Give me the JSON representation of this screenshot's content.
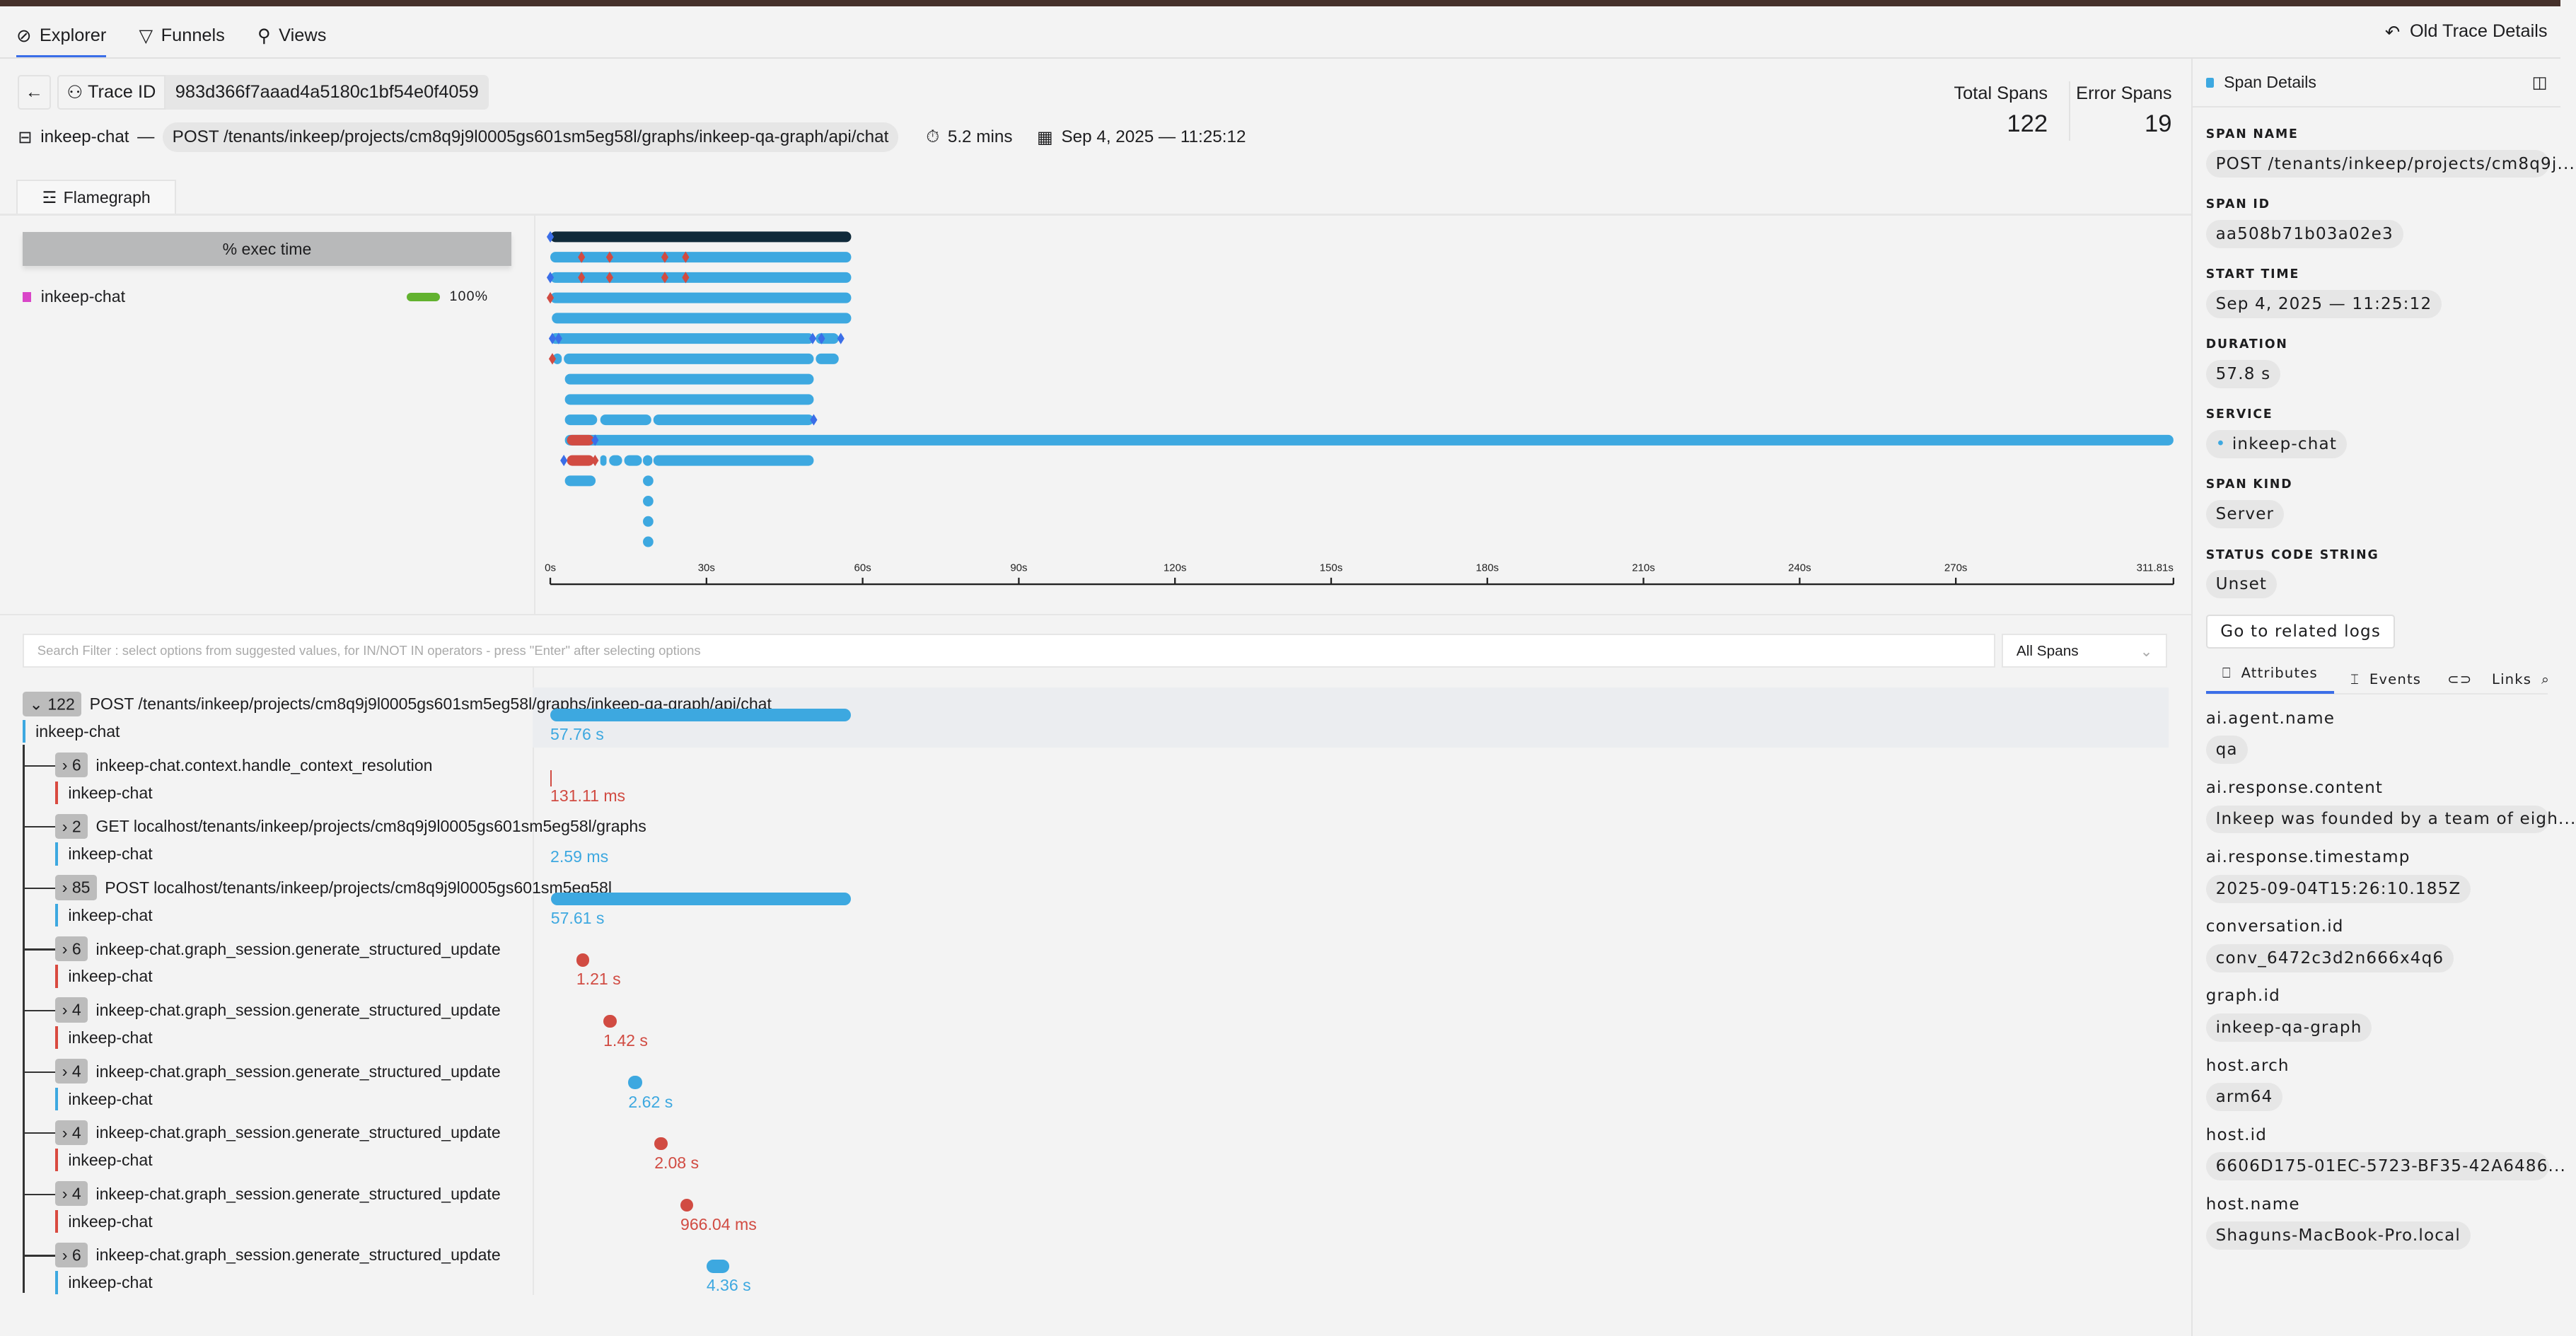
{
  "nav": {
    "tabs": [
      {
        "label": "Explorer",
        "icon": "compass-icon",
        "active": true
      },
      {
        "label": "Funnels",
        "icon": "funnel-icon"
      },
      {
        "label": "Views",
        "icon": "views-icon"
      }
    ],
    "old_trace": "Old Trace Details"
  },
  "header": {
    "trace_id_label": "Trace ID",
    "trace_id": "983d366f7aaad4a5180c1bf54e0f4059",
    "service": "inkeep-chat",
    "dash": "—",
    "root_span": "POST /tenants/inkeep/projects/cm8q9j9l0005gs601sm5eg58l/graphs/inkeep-qa-graph/api/chat",
    "duration": "5.2 mins",
    "start": "Sep 4, 2025 — 11:25:12",
    "total_spans_label": "Total Spans",
    "total_spans": "122",
    "error_spans_label": "Error Spans",
    "error_spans": "19"
  },
  "flamegraph": {
    "tab": "Flamegraph",
    "legend_title": "% exec time",
    "legend": [
      {
        "service": "inkeep-chat",
        "color": "#d946c8",
        "pct": "100%",
        "bar_color": "#62b22f"
      }
    ],
    "axis": {
      "ticks": [
        "0s",
        "30s",
        "60s",
        "90s",
        "120s",
        "150s",
        "180s",
        "210s",
        "240s",
        "270s"
      ],
      "tick_values": [
        0,
        30,
        60,
        90,
        120,
        150,
        180,
        210,
        240,
        270
      ],
      "end_label": "311.81s",
      "max": 311.81
    },
    "colors": {
      "root": "#102a3a",
      "ok": "#3da8e0",
      "error": "#d14b42",
      "event_ok": "#3b6ee8",
      "event_err": "#d14b42"
    },
    "bars": [
      {
        "row": 0,
        "start": 0,
        "end": 57.8,
        "kind": "root"
      },
      {
        "row": 1,
        "start": 0,
        "end": 57.8,
        "kind": "ok"
      },
      {
        "row": 2,
        "start": 0,
        "end": 57.8,
        "kind": "ok"
      },
      {
        "row": 3,
        "start": 0,
        "end": 57.8,
        "kind": "ok"
      },
      {
        "row": 4,
        "start": 0.3,
        "end": 57.8,
        "kind": "ok"
      },
      {
        "row": 5,
        "start": 0,
        "end": 50.6,
        "kind": "ok"
      },
      {
        "row": 5,
        "start": 51,
        "end": 55.4,
        "kind": "ok"
      },
      {
        "row": 6,
        "start": 0.5,
        "end": 2.2,
        "kind": "ok"
      },
      {
        "row": 6,
        "start": 2.6,
        "end": 50.6,
        "kind": "ok"
      },
      {
        "row": 6,
        "start": 51,
        "end": 55.4,
        "kind": "ok"
      },
      {
        "row": 7,
        "start": 2.8,
        "end": 50.6,
        "kind": "ok"
      },
      {
        "row": 8,
        "start": 2.8,
        "end": 50.6,
        "kind": "ok"
      },
      {
        "row": 9,
        "start": 2.8,
        "end": 9,
        "kind": "ok"
      },
      {
        "row": 9,
        "start": 9.6,
        "end": 19.4,
        "kind": "ok"
      },
      {
        "row": 9,
        "start": 19.8,
        "end": 50.6,
        "kind": "ok"
      },
      {
        "row": 10,
        "start": 2.8,
        "end": 311.81,
        "kind": "ok"
      },
      {
        "row": 10,
        "start": 3.2,
        "end": 8.4,
        "kind": "error"
      },
      {
        "row": 11,
        "start": 3.2,
        "end": 8.4,
        "kind": "error"
      },
      {
        "row": 11,
        "start": 9.6,
        "end": 10.8,
        "kind": "ok"
      },
      {
        "row": 11,
        "start": 11.3,
        "end": 13.8,
        "kind": "ok"
      },
      {
        "row": 11,
        "start": 14.2,
        "end": 17.6,
        "kind": "ok"
      },
      {
        "row": 11,
        "start": 17.8,
        "end": 19.6,
        "kind": "ok"
      },
      {
        "row": 11,
        "start": 19.8,
        "end": 50.6,
        "kind": "ok"
      },
      {
        "row": 12,
        "start": 2.8,
        "end": 8.7,
        "kind": "ok"
      },
      {
        "row": 12,
        "start": 17.8,
        "end": 19.8,
        "kind": "ok"
      },
      {
        "row": 13,
        "start": 17.8,
        "end": 19.8,
        "kind": "ok"
      },
      {
        "row": 14,
        "start": 17.8,
        "end": 19.8,
        "kind": "ok"
      },
      {
        "row": 15,
        "start": 17.8,
        "end": 19.8,
        "kind": "ok"
      }
    ],
    "events": [
      {
        "row": 0,
        "t": 0,
        "kind": "event_ok"
      },
      {
        "row": 1,
        "t": 6,
        "kind": "event_err"
      },
      {
        "row": 1,
        "t": 11.4,
        "kind": "event_err"
      },
      {
        "row": 1,
        "t": 22,
        "kind": "event_err"
      },
      {
        "row": 1,
        "t": 26,
        "kind": "event_err"
      },
      {
        "row": 2,
        "t": 0,
        "kind": "event_ok"
      },
      {
        "row": 2,
        "t": 6,
        "kind": "event_err"
      },
      {
        "row": 2,
        "t": 11.4,
        "kind": "event_err"
      },
      {
        "row": 2,
        "t": 22,
        "kind": "event_err"
      },
      {
        "row": 2,
        "t": 26,
        "kind": "event_err"
      },
      {
        "row": 3,
        "t": 0,
        "kind": "event_err"
      },
      {
        "row": 5,
        "t": 0.4,
        "kind": "event_ok"
      },
      {
        "row": 5,
        "t": 1.6,
        "kind": "event_ok"
      },
      {
        "row": 5,
        "t": 50.4,
        "kind": "event_ok"
      },
      {
        "row": 5,
        "t": 52.1,
        "kind": "event_ok"
      },
      {
        "row": 5,
        "t": 55.8,
        "kind": "event_ok"
      },
      {
        "row": 6,
        "t": 0.4,
        "kind": "event_err"
      },
      {
        "row": 9,
        "t": 50.6,
        "kind": "event_ok"
      },
      {
        "row": 10,
        "t": 8.6,
        "kind": "event_ok"
      },
      {
        "row": 11,
        "t": 2.6,
        "kind": "event_ok"
      },
      {
        "row": 11,
        "t": 8.6,
        "kind": "event_err"
      }
    ]
  },
  "filter": {
    "placeholder": "Search Filter : select options from suggested values, for IN/NOT IN operators - press \"Enter\" after selecting options",
    "select": "All Spans"
  },
  "spans": [
    {
      "count": "122",
      "expanded": true,
      "name": "POST /tenants/inkeep/projects/cm8q9j9l0005gs601sm5eg58l/graphs/inkeep-qa-graph/api/chat",
      "service": "inkeep-chat",
      "duration": "57.76 s",
      "start": 0,
      "dur_s": 57.76,
      "error": false,
      "depth": 0
    },
    {
      "count": "6",
      "name": "inkeep-chat.context.handle_context_resolution",
      "service": "inkeep-chat",
      "duration": "131.11 ms",
      "start": 0,
      "dur_s": 0.131,
      "error": true,
      "depth": 1
    },
    {
      "count": "2",
      "name": "GET localhost/tenants/inkeep/projects/cm8q9j9l0005gs601sm5eg58l/graphs",
      "service": "inkeep-chat",
      "duration": "2.59 ms",
      "start": 0,
      "dur_s": 0.0026,
      "error": false,
      "depth": 1
    },
    {
      "count": "85",
      "name": "POST localhost/tenants/inkeep/projects/cm8q9j9l0005gs601sm5eg58l",
      "service": "inkeep-chat",
      "duration": "57.61 s",
      "start": 0.1,
      "dur_s": 57.61,
      "error": false,
      "depth": 1
    },
    {
      "count": "6",
      "name": "inkeep-chat.graph_session.generate_structured_update",
      "service": "inkeep-chat",
      "duration": "1.21 s",
      "start": 5,
      "dur_s": 1.21,
      "error": true,
      "depth": 1
    },
    {
      "count": "4",
      "name": "inkeep-chat.graph_session.generate_structured_update",
      "service": "inkeep-chat",
      "duration": "1.42 s",
      "start": 10.2,
      "dur_s": 1.42,
      "error": true,
      "depth": 1
    },
    {
      "count": "4",
      "name": "inkeep-chat.graph_session.generate_structured_update",
      "service": "inkeep-chat",
      "duration": "2.62 s",
      "start": 15,
      "dur_s": 2.62,
      "error": false,
      "depth": 1
    },
    {
      "count": "4",
      "name": "inkeep-chat.graph_session.generate_structured_update",
      "service": "inkeep-chat",
      "duration": "2.08 s",
      "start": 20,
      "dur_s": 2.08,
      "error": true,
      "depth": 1
    },
    {
      "count": "4",
      "name": "inkeep-chat.graph_session.generate_structured_update",
      "service": "inkeep-chat",
      "duration": "966.04 ms",
      "start": 25,
      "dur_s": 0.966,
      "error": true,
      "depth": 1
    },
    {
      "count": "6",
      "name": "inkeep-chat.graph_session.generate_structured_update",
      "service": "inkeep-chat",
      "duration": "4.36 s",
      "start": 30,
      "dur_s": 4.36,
      "error": false,
      "depth": 1
    }
  ],
  "details": {
    "title": "Span Details",
    "fields": [
      {
        "label": "SPAN NAME",
        "value": "POST /tenants/inkeep/projects/cm8q9j..."
      },
      {
        "label": "SPAN ID",
        "value": "aa508b71b03a02e3"
      },
      {
        "label": "START TIME",
        "value": "Sep 4, 2025 — 11:25:12"
      },
      {
        "label": "DURATION",
        "value": "57.8 s"
      },
      {
        "label": "SERVICE",
        "value": "inkeep-chat",
        "dot": true
      },
      {
        "label": "SPAN KIND",
        "value": "Server"
      },
      {
        "label": "STATUS CODE STRING",
        "value": "Unset"
      }
    ],
    "logs_button": "Go to related logs",
    "tabs": [
      {
        "label": "Attributes",
        "active": true
      },
      {
        "label": "Events"
      },
      {
        "label": "Links"
      }
    ],
    "attributes": [
      {
        "key": "ai.agent.name",
        "value": "qa"
      },
      {
        "key": "ai.response.content",
        "value": "Inkeep was founded by a team of eigh..."
      },
      {
        "key": "ai.response.timestamp",
        "value": "2025-09-04T15:26:10.185Z"
      },
      {
        "key": "conversation.id",
        "value": "conv_6472c3d2n666x4q6"
      },
      {
        "key": "graph.id",
        "value": "inkeep-qa-graph"
      },
      {
        "key": "host.arch",
        "value": "arm64"
      },
      {
        "key": "host.id",
        "value": "6606D175-01EC-5723-BF35-42A6486..."
      },
      {
        "key": "host.name",
        "value": "Shaguns-MacBook-Pro.local"
      }
    ]
  }
}
